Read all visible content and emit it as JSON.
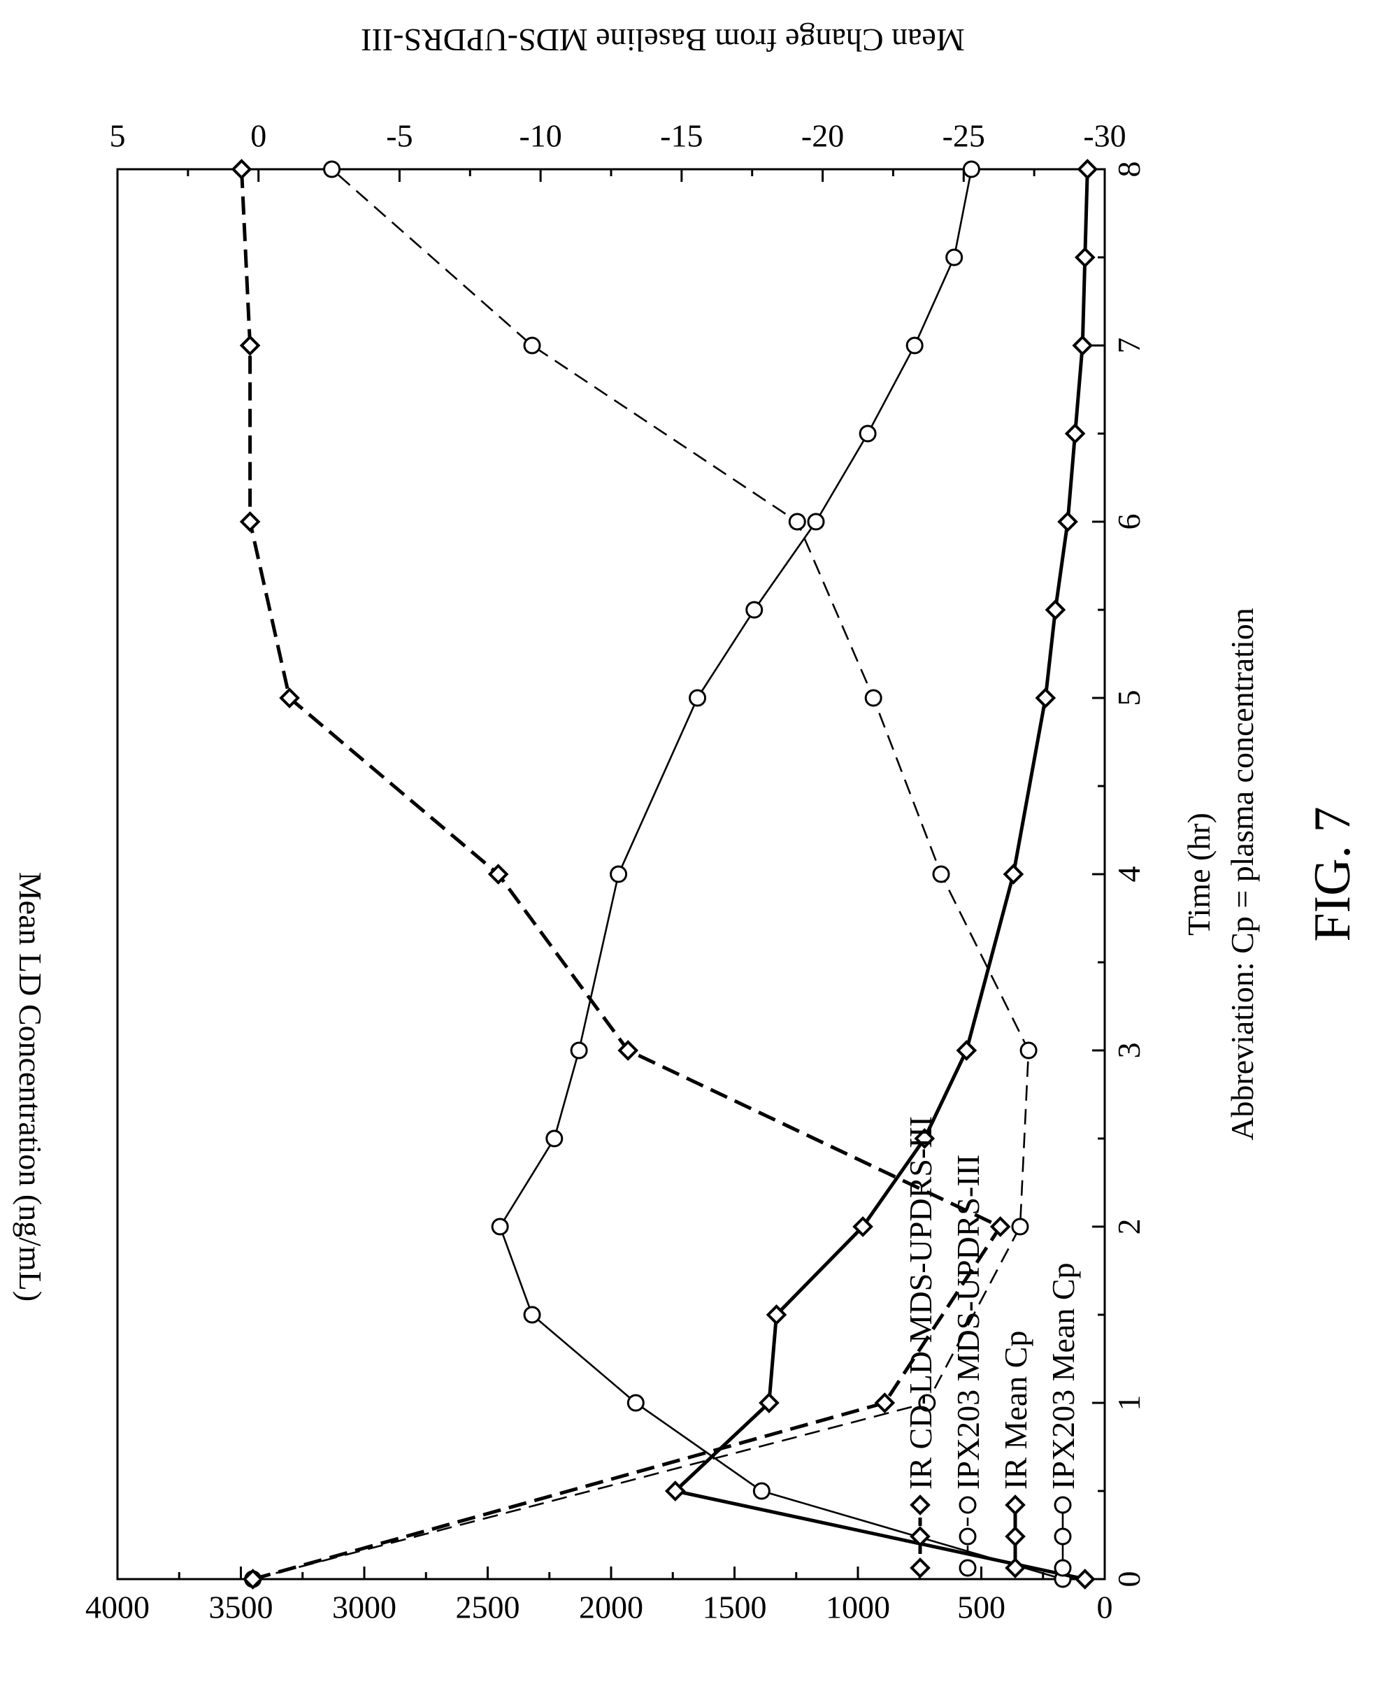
{
  "figure_label": "FIG. 7",
  "abbreviation": "Abbreviation: Cp = plasma concentration",
  "chart_data": {
    "type": "line",
    "orientation": "rotated 90 degrees counter-clockwise",
    "xlabel": "Time (hr)",
    "x_ticks": [
      0,
      1,
      2,
      3,
      4,
      5,
      6,
      7,
      8
    ],
    "xlim": [
      0,
      8
    ],
    "ylabel": "Mean LD Concentration (ng/mL)",
    "y_ticks": [
      0,
      500,
      1000,
      1500,
      2000,
      2500,
      3000,
      3500,
      4000
    ],
    "ylim": [
      0,
      4000
    ],
    "y2label": "Mean Change from Baseline MDS-UPDRS-III",
    "y2_ticks": [
      5,
      0,
      -5,
      -10,
      -15,
      -20,
      -25,
      -30
    ],
    "y2lim": [
      5,
      -30
    ],
    "legend_position": "top-left",
    "series": [
      {
        "name": "IPX203 Mean Cp",
        "axis": "left",
        "marker": "circle",
        "line": "solid",
        "x": [
          0,
          0.5,
          1,
          1.5,
          2,
          2.5,
          3,
          4,
          5,
          5.5,
          6,
          6.5,
          7,
          7.5,
          8
        ],
        "values": [
          170,
          1390,
          1900,
          2320,
          2450,
          2230,
          2130,
          1970,
          1650,
          1420,
          1170,
          960,
          770,
          610,
          540
        ]
      },
      {
        "name": "IR Mean Cp",
        "axis": "left",
        "marker": "diamond",
        "line": "solid bold",
        "x": [
          0,
          0.5,
          1,
          1.5,
          2,
          2.5,
          3,
          4,
          5,
          5.5,
          6,
          6.5,
          7,
          7.5,
          8
        ],
        "values": [
          80,
          1740,
          1360,
          1330,
          980,
          730,
          560,
          370,
          240,
          200,
          150,
          120,
          90,
          80,
          70
        ]
      },
      {
        "name": "IPX203 MDS-UPDRS-III",
        "axis": "right",
        "marker": "circle",
        "line": "dashed",
        "x": [
          0,
          1,
          2,
          3,
          4,
          5,
          6,
          7,
          8
        ],
        "values": [
          0.2,
          -23.7,
          -27.0,
          -27.3,
          -24.2,
          -21.8,
          -19.1,
          -9.7,
          -2.6
        ]
      },
      {
        "name": "IR CD-LD MDS-UPDRS-III",
        "axis": "right",
        "marker": "diamond",
        "line": "dashed bold",
        "x": [
          0,
          1,
          2,
          3,
          4,
          5,
          6,
          7
        ],
        "values": [
          0.2,
          -22.2,
          -26.3,
          -13.1,
          -8.5,
          -1.1,
          0.3,
          0.3
        ],
        "x_end": 8,
        "value_end": 0.6
      }
    ]
  }
}
